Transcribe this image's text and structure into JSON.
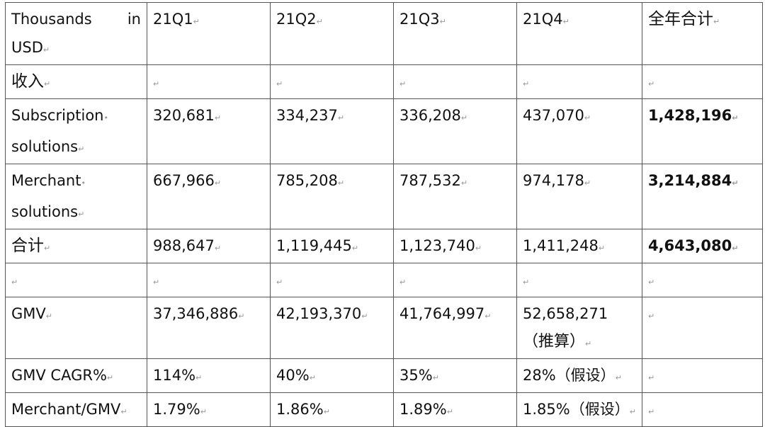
{
  "table": {
    "header": {
      "label_left": "Thousands",
      "label_right": "in",
      "label_line2": "USD",
      "cols": [
        "21Q1",
        "21Q2",
        "21Q3",
        "21Q4",
        "全年合计"
      ]
    },
    "rows": [
      {
        "label": "收入",
        "cells": [
          "",
          "",
          "",
          "",
          ""
        ]
      },
      {
        "label_line1": "Subscription",
        "label_line2": "solutions",
        "cells": [
          "320,681",
          "334,237",
          "336,208",
          "437,070",
          "1,428,196"
        ]
      },
      {
        "label_line1": "Merchant",
        "label_line2": "solutions",
        "cells": [
          "667,966",
          "785,208",
          "787,532",
          "974,178",
          "3,214,884"
        ]
      },
      {
        "label": "合计",
        "cells": [
          "988,647",
          "1,119,445",
          "1,123,740",
          "1,411,248",
          "4,643,080"
        ]
      },
      {
        "label": "",
        "cells": [
          "",
          "",
          "",
          "",
          ""
        ]
      },
      {
        "label": "GMV",
        "cells": [
          "37,346,886",
          "42,193,370",
          "41,764,997",
          "52,658,271",
          ""
        ],
        "q4_line2": "（推算）"
      },
      {
        "label": "GMV CAGR%",
        "cells": [
          "114%",
          "40%",
          "35%",
          "28%（假设）",
          ""
        ]
      },
      {
        "label": "Merchant/GMV",
        "cells": [
          "1.79%",
          "1.86%",
          "1.89%",
          "1.85%（假设）",
          ""
        ]
      }
    ]
  }
}
